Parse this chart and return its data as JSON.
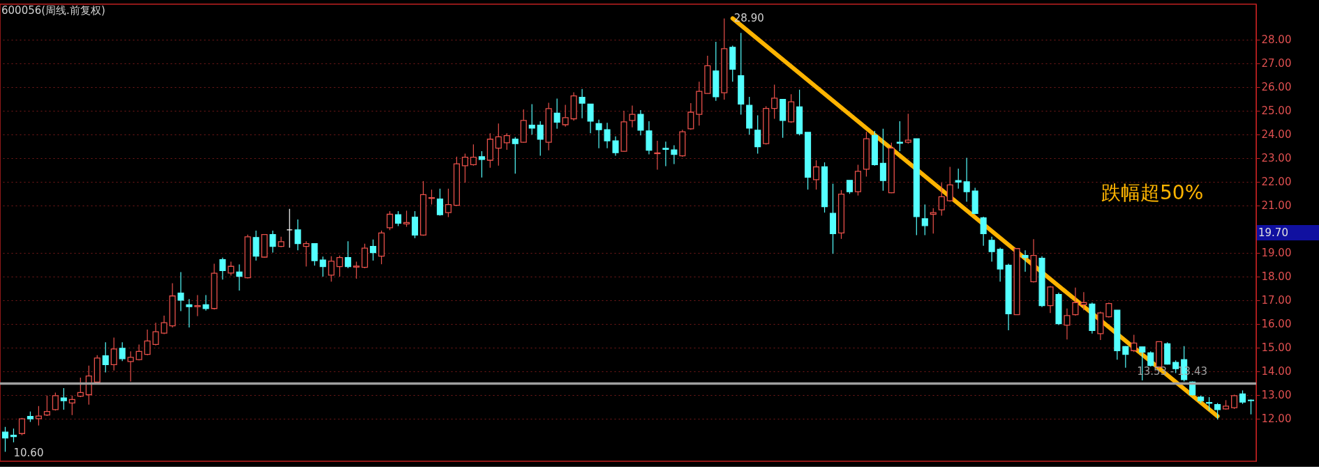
{
  "chart_data": {
    "type": "candlestick",
    "title": "600056(周线.前复权)",
    "categories": [
      null,
      null,
      null,
      null,
      null,
      null,
      null,
      null,
      null,
      null,
      null,
      null,
      null,
      null,
      null,
      null,
      null,
      null,
      null,
      null,
      null,
      null,
      null,
      null,
      null,
      null,
      null,
      null,
      null,
      null,
      null,
      null,
      null,
      null,
      null,
      null,
      null,
      null,
      null,
      null,
      null,
      null,
      null,
      null,
      null,
      null,
      null,
      null,
      null,
      null,
      null,
      null,
      null,
      null,
      null,
      null,
      null,
      null,
      null,
      null,
      null,
      null,
      null,
      null,
      null,
      null,
      null,
      null,
      null,
      null,
      null,
      null,
      null,
      null,
      null,
      null,
      null,
      null,
      null,
      null,
      null,
      null,
      null,
      null,
      null,
      null,
      null,
      null,
      null,
      null,
      null,
      null,
      null,
      null,
      null,
      null,
      null,
      null,
      null,
      null,
      null,
      null,
      null,
      null,
      null,
      null,
      null,
      null,
      null,
      null,
      null,
      null,
      null,
      null,
      null,
      null,
      null,
      null,
      null,
      null,
      null,
      null,
      null,
      null,
      null,
      null,
      null,
      null,
      null,
      null,
      null,
      null,
      null,
      null,
      null,
      null,
      null,
      null,
      null,
      null,
      null,
      null,
      null,
      null,
      null,
      null,
      null,
      null,
      null,
      null
    ],
    "colors": [
      "#54ffff",
      "#54ffff",
      "#e8504a",
      "#54ffff",
      "#e8504a",
      "#e8504a",
      "#e8504a",
      "#54ffff",
      "#e8504a",
      "#e8504a",
      "#e8504a",
      "#e8504a",
      "#54ffff",
      "#e8504a",
      "#54ffff",
      "#e8504a",
      "#e8504a",
      "#e8504a",
      "#e8504a",
      "#e8504a",
      "#e8504a",
      "#54ffff",
      "#54ffff",
      "#e8504a",
      "#54ffff",
      "#e8504a",
      "#54ffff",
      "#e8504a",
      "#54ffff",
      "#e8504a",
      "#54ffff",
      "#e8504a",
      "#54ffff",
      "#e8504a",
      "#ffffff",
      "#54ffff",
      "#e8504a",
      "#54ffff",
      "#54ffff",
      "#e8504a",
      "#e8504a",
      "#54ffff",
      "#e8504a",
      "#e8504a",
      "#54ffff",
      "#e8504a",
      "#e8504a",
      "#54ffff",
      "#e8504a",
      "#54ffff",
      "#e8504a",
      "#e8504a",
      "#54ffff",
      "#e8504a",
      "#e8504a",
      "#e8504a",
      "#e8504a",
      "#54ffff",
      "#e8504a",
      "#e8504a",
      "#e8504a",
      "#54ffff",
      "#e8504a",
      "#54ffff",
      "#54ffff",
      "#e8504a",
      "#54ffff",
      "#e8504a",
      "#e8504a",
      "#54ffff",
      "#54ffff",
      "#54ffff",
      "#54ffff",
      "#54ffff",
      "#e8504a",
      "#e8504a",
      "#54ffff",
      "#54ffff",
      "#e8504a",
      "#54ffff",
      "#54ffff",
      "#e8504a",
      "#e8504a",
      "#e8504a",
      "#e8504a",
      "#54ffff",
      "#e8504a",
      "#54ffff",
      "#54ffff",
      "#54ffff",
      "#54ffff",
      "#e8504a",
      "#e8504a",
      "#54ffff",
      "#e8504a",
      "#54ffff",
      "#54ffff",
      "#e8504a",
      "#54ffff",
      "#54ffff",
      "#e8504a",
      "#54ffff",
      "#e8504a",
      "#e8504a",
      "#54ffff",
      "#54ffff",
      "#e8504a",
      "#54ffff",
      "#e8504a",
      "#54ffff",
      "#54ffff",
      "#e8504a",
      "#e8504a",
      "#e8504a",
      "#54ffff",
      "#54ffff",
      "#54ffff",
      "#54ffff",
      "#54ffff",
      "#54ffff",
      "#54ffff",
      "#e8504a",
      "#54ffff",
      "#e8504a",
      "#54ffff",
      "#e8504a",
      "#54ffff",
      "#e8504a",
      "#e8504a",
      "#e8504a",
      "#54ffff",
      "#e8504a",
      "#e8504a",
      "#54ffff",
      "#54ffff",
      "#e8504a",
      "#54ffff",
      "#54ffff",
      "#e8504a",
      "#54ffff",
      "#54ffff",
      "#54ffff",
      "#54ffff",
      "#54ffff",
      "#54ffff",
      "#54ffff",
      "#e8504a",
      "#e8504a",
      "#54ffff",
      "#54ffff"
    ],
    "ohlc": [
      [
        11.43,
        11.65,
        10.6,
        11.18
      ],
      [
        11.3,
        11.58,
        11.0,
        11.24
      ],
      [
        11.37,
        12.03,
        11.3,
        11.99
      ],
      [
        12.09,
        12.3,
        11.86,
        11.99
      ],
      [
        12.0,
        12.53,
        11.71,
        12.11
      ],
      [
        12.15,
        12.97,
        12.11,
        12.3
      ],
      [
        12.38,
        13.1,
        12.34,
        12.97
      ],
      [
        12.87,
        13.29,
        12.38,
        12.76
      ],
      [
        12.66,
        12.97,
        12.15,
        12.81
      ],
      [
        12.95,
        13.73,
        12.91,
        13.1
      ],
      [
        13.01,
        14.24,
        12.59,
        13.8
      ],
      [
        13.54,
        14.68,
        13.52,
        14.56
      ],
      [
        14.65,
        15.22,
        13.95,
        14.28
      ],
      [
        14.28,
        15.42,
        14.03,
        14.94
      ],
      [
        14.97,
        15.22,
        14.43,
        14.53
      ],
      [
        14.41,
        14.84,
        13.57,
        14.59
      ],
      [
        14.49,
        15.13,
        14.46,
        14.84
      ],
      [
        14.71,
        15.76,
        14.68,
        15.28
      ],
      [
        15.13,
        16.05,
        15.09,
        15.67
      ],
      [
        15.61,
        16.35,
        15.57,
        16.05
      ],
      [
        15.92,
        17.72,
        15.85,
        17.18
      ],
      [
        17.3,
        18.19,
        16.54,
        17.0
      ],
      [
        16.81,
        17.05,
        15.85,
        16.73
      ],
      [
        16.73,
        17.22,
        16.33,
        16.77
      ],
      [
        16.81,
        17.22,
        16.56,
        16.65
      ],
      [
        16.65,
        18.54,
        16.61,
        18.14
      ],
      [
        18.71,
        18.8,
        17.87,
        18.25
      ],
      [
        18.15,
        18.63,
        18.04,
        18.43
      ],
      [
        18.19,
        18.51,
        17.41,
        18.01
      ],
      [
        17.95,
        19.77,
        17.92,
        19.68
      ],
      [
        19.65,
        19.94,
        18.67,
        18.86
      ],
      [
        18.82,
        19.77,
        18.8,
        19.77
      ],
      [
        19.77,
        19.94,
        19.01,
        19.27
      ],
      [
        19.27,
        19.68,
        19.24,
        19.47
      ],
      [
        19.97,
        20.86,
        19.22,
        19.97
      ],
      [
        19.97,
        20.41,
        19.11,
        19.39
      ],
      [
        19.27,
        19.49,
        18.42,
        19.39
      ],
      [
        19.39,
        19.39,
        18.46,
        18.67
      ],
      [
        18.7,
        18.84,
        18.0,
        18.42
      ],
      [
        18.06,
        18.86,
        17.78,
        18.65
      ],
      [
        18.42,
        18.89,
        18.0,
        18.8
      ],
      [
        18.8,
        19.49,
        18.35,
        18.42
      ],
      [
        18.4,
        18.63,
        17.91,
        18.44
      ],
      [
        18.39,
        19.39,
        18.35,
        19.2
      ],
      [
        19.27,
        19.56,
        18.67,
        19.01
      ],
      [
        18.86,
        19.94,
        18.52,
        19.84
      ],
      [
        20.06,
        20.76,
        19.96,
        20.63
      ],
      [
        20.61,
        20.76,
        20.13,
        20.25
      ],
      [
        20.22,
        20.78,
        20.1,
        20.28
      ],
      [
        20.51,
        20.76,
        19.62,
        19.75
      ],
      [
        19.75,
        22.03,
        19.72,
        21.46
      ],
      [
        21.3,
        21.67,
        21.04,
        21.33
      ],
      [
        21.27,
        21.71,
        20.57,
        20.61
      ],
      [
        20.7,
        21.71,
        20.51,
        21.04
      ],
      [
        21.01,
        23.06,
        20.99,
        22.76
      ],
      [
        22.68,
        23.19,
        21.96,
        23.04
      ],
      [
        22.72,
        23.58,
        22.68,
        23.04
      ],
      [
        23.06,
        23.29,
        22.18,
        22.94
      ],
      [
        22.91,
        24.05,
        22.59,
        23.8
      ],
      [
        23.42,
        24.46,
        22.68,
        23.9
      ],
      [
        23.65,
        24.05,
        23.35,
        23.95
      ],
      [
        23.8,
        23.89,
        22.34,
        23.61
      ],
      [
        23.67,
        25.06,
        23.65,
        24.59
      ],
      [
        24.39,
        25.28,
        23.99,
        24.27
      ],
      [
        24.39,
        24.56,
        23.1,
        23.8
      ],
      [
        23.67,
        25.34,
        23.33,
        25.09
      ],
      [
        24.9,
        25.51,
        24.24,
        24.52
      ],
      [
        24.41,
        25.25,
        24.33,
        24.71
      ],
      [
        24.66,
        25.78,
        24.58,
        25.63
      ],
      [
        25.57,
        25.92,
        24.68,
        25.32
      ],
      [
        25.28,
        25.28,
        24.05,
        24.56
      ],
      [
        24.46,
        24.62,
        23.42,
        24.2
      ],
      [
        24.2,
        24.49,
        23.42,
        23.73
      ],
      [
        23.73,
        23.92,
        23.1,
        23.23
      ],
      [
        23.29,
        25.0,
        23.27,
        24.53
      ],
      [
        24.59,
        25.22,
        24.3,
        24.85
      ],
      [
        24.85,
        25.03,
        23.96,
        24.18
      ],
      [
        24.15,
        24.56,
        23.16,
        23.33
      ],
      [
        23.19,
        23.73,
        22.51,
        23.22
      ],
      [
        23.41,
        23.7,
        22.66,
        23.37
      ],
      [
        23.35,
        23.54,
        22.75,
        23.16
      ],
      [
        23.1,
        24.2,
        23.06,
        24.11
      ],
      [
        24.24,
        25.32,
        24.2,
        24.94
      ],
      [
        24.85,
        26.23,
        24.37,
        25.82
      ],
      [
        25.73,
        27.32,
        25.73,
        26.9
      ],
      [
        26.68,
        27.91,
        25.42,
        25.59
      ],
      [
        25.76,
        28.9,
        25.47,
        27.62
      ],
      [
        27.68,
        27.75,
        26.23,
        26.75
      ],
      [
        26.48,
        28.29,
        24.84,
        25.28
      ],
      [
        25.23,
        25.59,
        23.99,
        24.27
      ],
      [
        24.18,
        24.81,
        23.19,
        23.48
      ],
      [
        23.61,
        25.19,
        23.57,
        25.1
      ],
      [
        25.1,
        26.1,
        24.66,
        25.53
      ],
      [
        25.48,
        25.48,
        23.86,
        24.59
      ],
      [
        24.53,
        25.7,
        24.49,
        25.38
      ],
      [
        25.16,
        25.89,
        23.96,
        24.03
      ],
      [
        24.09,
        24.09,
        21.67,
        22.19
      ],
      [
        22.09,
        22.91,
        21.67,
        22.63
      ],
      [
        22.63,
        22.82,
        20.7,
        20.95
      ],
      [
        20.67,
        21.92,
        18.96,
        19.81
      ],
      [
        19.84,
        21.65,
        19.59,
        21.48
      ],
      [
        22.06,
        22.06,
        21.49,
        21.58
      ],
      [
        21.58,
        22.72,
        21.42,
        22.44
      ],
      [
        22.53,
        24.11,
        22.22,
        23.82
      ],
      [
        23.96,
        24.15,
        22.68,
        22.72
      ],
      [
        22.78,
        24.24,
        21.62,
        22.05
      ],
      [
        21.54,
        23.65,
        21.52,
        23.42
      ],
      [
        23.67,
        24.56,
        23.29,
        23.63
      ],
      [
        23.67,
        24.87,
        23.61,
        23.76
      ],
      [
        23.82,
        23.82,
        19.75,
        20.53
      ],
      [
        20.44,
        21.04,
        19.75,
        20.15
      ],
      [
        20.63,
        20.89,
        19.81,
        20.7
      ],
      [
        20.82,
        21.96,
        20.57,
        21.37
      ],
      [
        21.2,
        22.63,
        21.16,
        21.87
      ],
      [
        22.05,
        22.56,
        21.71,
        21.99
      ],
      [
        22.0,
        23.01,
        21.16,
        21.58
      ],
      [
        21.61,
        21.75,
        20.63,
        20.66
      ],
      [
        20.48,
        20.53,
        19.3,
        19.81
      ],
      [
        19.53,
        19.68,
        18.63,
        19.05
      ],
      [
        19.15,
        19.22,
        17.78,
        18.32
      ],
      [
        18.48,
        18.54,
        15.73,
        16.43
      ],
      [
        16.39,
        19.18,
        16.39,
        19.18
      ],
      [
        18.89,
        19.11,
        18.2,
        18.8
      ],
      [
        17.78,
        19.58,
        17.75,
        18.89
      ],
      [
        18.77,
        18.86,
        16.71,
        16.77
      ],
      [
        16.77,
        17.6,
        16.46,
        17.56
      ],
      [
        17.24,
        17.32,
        15.95,
        16.01
      ],
      [
        15.95,
        16.65,
        15.34,
        16.35
      ],
      [
        16.39,
        17.53,
        16.35,
        16.9
      ],
      [
        16.81,
        17.34,
        16.58,
        16.9
      ],
      [
        16.84,
        16.9,
        15.59,
        15.72
      ],
      [
        15.59,
        16.52,
        15.32,
        16.46
      ],
      [
        16.3,
        16.9,
        16.27,
        16.86
      ],
      [
        16.58,
        16.58,
        14.49,
        14.87
      ],
      [
        15.04,
        15.06,
        14.15,
        14.71
      ],
      [
        14.87,
        15.54,
        14.81,
        15.19
      ],
      [
        15.03,
        15.03,
        13.61,
        14.81
      ],
      [
        14.78,
        14.84,
        14.2,
        14.24
      ],
      [
        14.18,
        15.25,
        14.11,
        15.25
      ],
      [
        15.16,
        15.22,
        14.28,
        14.3
      ],
      [
        14.37,
        14.46,
        13.92,
        14.11
      ],
      [
        14.49,
        15.06,
        13.57,
        13.65
      ],
      [
        13.54,
        13.57,
        12.97,
        13.01
      ],
      [
        12.91,
        12.97,
        12.66,
        12.76
      ],
      [
        12.68,
        12.91,
        12.34,
        12.65
      ],
      [
        12.59,
        12.66,
        11.96,
        12.38
      ],
      [
        12.41,
        12.78,
        12.38,
        12.53
      ],
      [
        12.46,
        13.01,
        12.41,
        12.97
      ],
      [
        13.04,
        13.19,
        12.62,
        12.7
      ],
      [
        12.78,
        12.81,
        12.18,
        12.76
      ]
    ],
    "series": [
      {
        "type": "line",
        "color": "#ffb400",
        "values": [
          null,
          null,
          null,
          null,
          null,
          null,
          null,
          null,
          null,
          null,
          null,
          null,
          null,
          null,
          null,
          null,
          null,
          null,
          null,
          null,
          null,
          null,
          null,
          null,
          null,
          null,
          null,
          null,
          null,
          null,
          null,
          null,
          null,
          null,
          null,
          null,
          null,
          null,
          null,
          null,
          null,
          null,
          null,
          null,
          null,
          null,
          null,
          null,
          null,
          null,
          null,
          null,
          null,
          null,
          null,
          null,
          null,
          null,
          null,
          null,
          null,
          null,
          null,
          null,
          null,
          null,
          null,
          null,
          null,
          null,
          null,
          null,
          null,
          null,
          null,
          null,
          null,
          null,
          null,
          null,
          null,
          null,
          null,
          null,
          null,
          null,
          null,
          28.9,
          null,
          null,
          null,
          null,
          null,
          null,
          null,
          null,
          null,
          null,
          null,
          null,
          null,
          null,
          null,
          null,
          null,
          null,
          null,
          null,
          null,
          null,
          null,
          null,
          null,
          null,
          null,
          null,
          null,
          null,
          null,
          null,
          null,
          null,
          null,
          null,
          null,
          null,
          null,
          null,
          null,
          null,
          null,
          null,
          null,
          null,
          null,
          null,
          null,
          null,
          null,
          null,
          null,
          null,
          null,
          null,
          null,
          12.1,
          null,
          null,
          null,
          null
        ]
      }
    ],
    "ylim": [
      10.2,
      29.5
    ],
    "yticks": [
      {
        "value": 12,
        "label": "12.00"
      },
      {
        "value": 13,
        "label": "13.00"
      },
      {
        "value": 14,
        "label": "14.00"
      },
      {
        "value": 15,
        "label": "15.00"
      },
      {
        "value": 16,
        "label": "16.00"
      },
      {
        "value": 17,
        "label": "17.00"
      },
      {
        "value": 18,
        "label": "18.00"
      },
      {
        "value": 19,
        "label": "19.00"
      },
      {
        "value": 21,
        "label": "21.00"
      },
      {
        "value": 22,
        "label": "22.00"
      },
      {
        "value": 23,
        "label": "23.00"
      },
      {
        "value": 24,
        "label": "24.00"
      },
      {
        "value": 25,
        "label": "25.00"
      },
      {
        "value": 26,
        "label": "26.00"
      },
      {
        "value": 27,
        "label": "27.00"
      },
      {
        "value": 28,
        "label": "28.00"
      }
    ],
    "grid": "y",
    "bands": [
      {
        "axis": "y",
        "from": 13.43,
        "to": 13.53,
        "label": "13.53 - 13.43",
        "color": "#a0a0a0"
      }
    ],
    "annotations": [
      "28.90",
      "10.60",
      "19.70",
      "跌幅超50%"
    ]
  }
}
